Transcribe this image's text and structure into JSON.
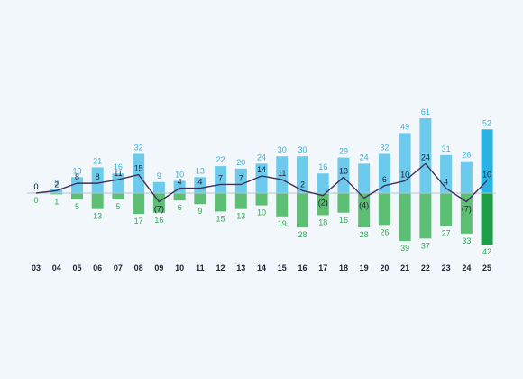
{
  "chart_data": {
    "type": "bar",
    "subtype": "diverging-stacked-with-line",
    "categories": [
      "03",
      "04",
      "05",
      "06",
      "07",
      "08",
      "09",
      "10",
      "11",
      "12",
      "13",
      "14",
      "15",
      "16",
      "17",
      "18",
      "19",
      "20",
      "21",
      "22",
      "23",
      "24",
      "25"
    ],
    "series": [
      {
        "values": [
          0,
          3,
          13,
          21,
          16,
          32,
          9,
          10,
          13,
          22,
          20,
          24,
          30,
          30,
          16,
          29,
          24,
          32,
          49,
          61,
          31,
          26,
          52
        ],
        "labels": [
          "0",
          "3",
          "13",
          "21",
          "16",
          "32",
          "9",
          "10",
          "13",
          "22",
          "20",
          "24",
          "30",
          "30",
          "16",
          "29",
          "24",
          "32",
          "49",
          "61",
          "31",
          "26",
          "52"
        ],
        "color": "#6ccbec",
        "highlight_color": "#28b3e2"
      },
      {
        "values": [
          0,
          -1,
          -5,
          -13,
          -5,
          -17,
          -16,
          -6,
          -9,
          -15,
          -13,
          -10,
          -19,
          -28,
          -18,
          -16,
          -28,
          -26,
          -39,
          -37,
          -27,
          -33,
          -42
        ],
        "labels": [
          "0",
          "1",
          "5",
          "13",
          "5",
          "17",
          "16",
          "6",
          "9",
          "15",
          "13",
          "10",
          "19",
          "28",
          "18",
          "16",
          "28",
          "26",
          "39",
          "37",
          "27",
          "33",
          "42"
        ],
        "color": "#5cbf74",
        "highlight_color": "#1e9e46"
      },
      {
        "type": "line",
        "values": [
          0,
          2,
          8,
          8,
          11,
          15,
          -7,
          4,
          4,
          7,
          7,
          14,
          11,
          2,
          -2,
          13,
          -4,
          6,
          10,
          24,
          4,
          -7,
          10
        ],
        "labels": [
          "0",
          "2",
          "8",
          "8",
          "11",
          "15",
          "(7)",
          "4",
          "4",
          "7",
          "7",
          "14",
          "11",
          "2",
          "(2)",
          "13",
          "(4)",
          "6",
          "10",
          "24",
          "4",
          "(7)",
          "10"
        ],
        "color": "#3d3159"
      }
    ],
    "highlight_last": true,
    "ylim": [
      -50,
      70
    ],
    "grid": false,
    "legend": "none",
    "baseline_color": "#b8c4cf"
  }
}
